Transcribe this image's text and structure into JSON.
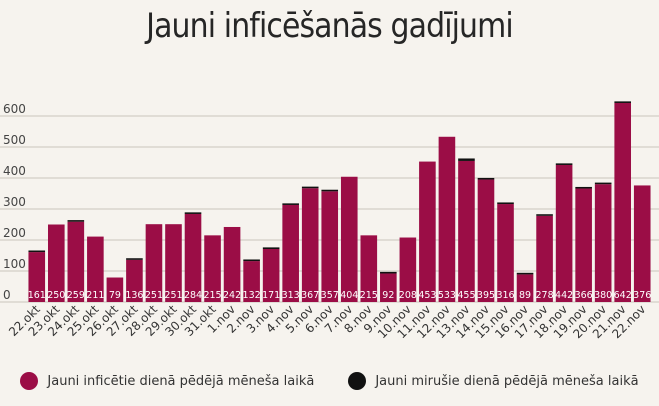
{
  "title": "Jauni inficēšanās gadījumi",
  "colors": {
    "infected": "#9b0d46",
    "deaths": "#111111",
    "grid": "#c9c4bc",
    "background": "#f6f3ee"
  },
  "chart_data": {
    "type": "bar",
    "stacked": true,
    "categories": [
      "22.okt",
      "23.okt",
      "24.okt",
      "25.okt",
      "26.okt",
      "27.okt",
      "28.okt",
      "29.okt",
      "30.okt",
      "31.okt",
      "1.nov",
      "2.nov",
      "3.nov",
      "4.nov",
      "5.nov",
      "6.nov",
      "7.nov",
      "8.nov",
      "9.nov",
      "10.nov",
      "11.nov",
      "12.nov",
      "13.nov",
      "14.nov",
      "15.nov",
      "16.nov",
      "17.nov",
      "18.nov",
      "19.nov",
      "20.nov",
      "21.nov",
      "22.nov"
    ],
    "series": [
      {
        "name": "Jauni inficētie dienā pēdējā mēneša laikā",
        "values": [
          161,
          250,
          259,
          211,
          79,
          136,
          251,
          251,
          284,
          215,
          242,
          132,
          171,
          313,
          367,
          357,
          404,
          215,
          92,
          208,
          453,
          533,
          455,
          395,
          316,
          89,
          278,
          442,
          366,
          380,
          642,
          376
        ]
      },
      {
        "name": "Jauni mirušie dienā pēdējā mēneša laikā",
        "values": [
          1,
          0,
          3,
          0,
          0,
          2,
          0,
          0,
          5,
          0,
          0,
          1,
          2,
          3,
          3,
          4,
          0,
          0,
          2,
          0,
          0,
          0,
          8,
          2,
          1,
          3,
          1,
          5,
          2,
          2,
          5,
          0
        ]
      }
    ],
    "ylim": [
      0,
      680
    ],
    "yticks": [
      "0",
      "100",
      "200",
      "300",
      "400",
      "500",
      "600"
    ],
    "grid": true,
    "legend": "bottom"
  }
}
